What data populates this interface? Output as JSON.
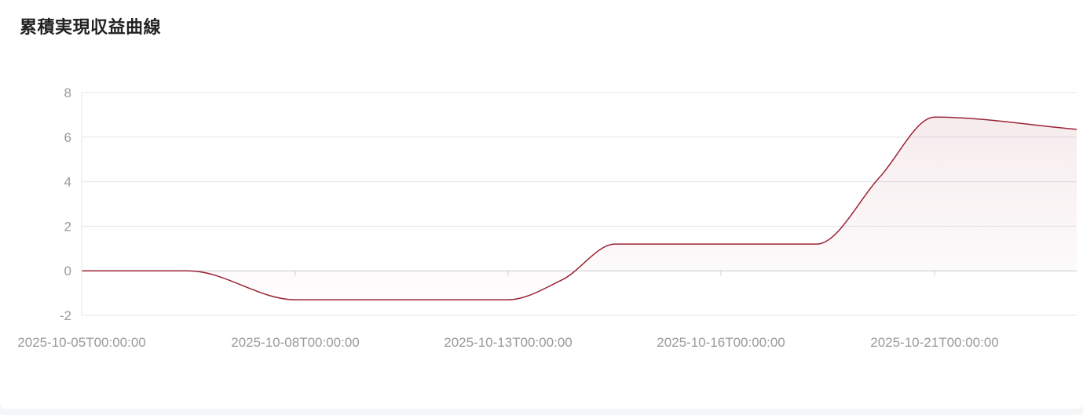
{
  "title": "累積実現収益曲線",
  "colors": {
    "line": "#9b2335",
    "grid": "#e3e6f0",
    "axis": "#c8ccd6",
    "label": "#9a9a9a",
    "fill_top": "#9b2335"
  },
  "chart_data": {
    "type": "area",
    "title": "累積実現収益曲線",
    "xlabel": "",
    "ylabel": "",
    "ylim": [
      -2,
      8
    ],
    "yticks": [
      -2,
      0,
      2,
      4,
      6,
      8
    ],
    "categories": [
      "2025-10-05T00:00:00",
      "2025-10-06T00:00:00",
      "2025-10-08T00:00:00",
      "2025-10-09T00:00:00",
      "2025-10-13T00:00:00",
      "2025-10-14T00:00:00",
      "2025-10-15T00:00:00",
      "2025-10-16T00:00:00",
      "2025-10-17T00:00:00",
      "2025-10-18T00:00:00",
      "2025-10-21T00:00:00",
      "2025-10-22T00:00:00"
    ],
    "xtick_labels": [
      "2025-10-05T00:00:00",
      "2025-10-08T00:00:00",
      "2025-10-13T00:00:00",
      "2025-10-16T00:00:00",
      "2025-10-21T00:00:00"
    ],
    "values": [
      0,
      0,
      -1.3,
      -1.3,
      -1.3,
      -0.4,
      1.2,
      1.2,
      1.2,
      4.2,
      6.9,
      6.35
    ],
    "grid": true,
    "legend": "none"
  }
}
